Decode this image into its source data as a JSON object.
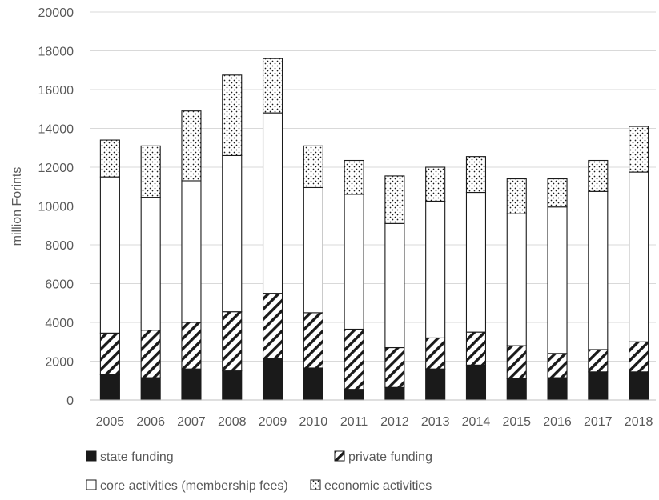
{
  "chart_data": {
    "type": "bar",
    "stacked": true,
    "title": "",
    "xlabel": "",
    "ylabel": "million Forints",
    "ylim": [
      0,
      20000
    ],
    "yticks": [
      "0",
      "2000",
      "4000",
      "6000",
      "8000",
      "10000",
      "12000",
      "14000",
      "16000",
      "18000",
      "20000"
    ],
    "grid": true,
    "legend_position": "bottom",
    "categories": [
      "2005",
      "2006",
      "2007",
      "2008",
      "2009",
      "2010",
      "2011",
      "2012",
      "2013",
      "2014",
      "2015",
      "2016",
      "2017",
      "2018"
    ],
    "series": [
      {
        "name": "state funding",
        "fill": "solid",
        "color": "#1a1a1a",
        "values": [
          1300,
          1150,
          1600,
          1500,
          2150,
          1650,
          550,
          650,
          1600,
          1800,
          1100,
          1150,
          1450,
          1450
        ]
      },
      {
        "name": "private funding",
        "fill": "hatch",
        "color": "#1a1a1a",
        "values": [
          2150,
          2450,
          2400,
          3050,
          3350,
          2850,
          3100,
          2050,
          1600,
          1700,
          1700,
          1250,
          1150,
          1550
        ]
      },
      {
        "name": "core activities (membership fees)",
        "fill": "empty",
        "color": "#ffffff",
        "values": [
          8050,
          6850,
          7300,
          8050,
          9300,
          6450,
          6950,
          6400,
          7050,
          7200,
          6800,
          7550,
          8150,
          8750
        ]
      },
      {
        "name": "economic activities",
        "fill": "dots",
        "color": "#1a1a1a",
        "values": [
          1900,
          2650,
          3600,
          4150,
          2800,
          2150,
          1750,
          2450,
          1750,
          1850,
          1800,
          1450,
          1600,
          2350
        ]
      }
    ]
  }
}
